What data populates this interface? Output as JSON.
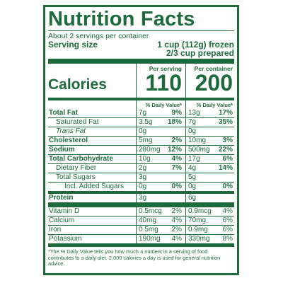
{
  "title": "Nutrition Facts",
  "servings_per_container": "About 2 servings per container",
  "serving_size": {
    "label": "Serving size",
    "line1": "1 cup (112g) frozen",
    "line2": "2/3 cup prepared"
  },
  "calories": {
    "label": "Calories",
    "per_serving_header": "Per serving",
    "per_container_header": "Per container",
    "per_serving": "110",
    "per_container": "200"
  },
  "dv_header": "% Daily Value*",
  "nutrients": [
    {
      "name": "Total Fat",
      "a": "7g",
      "a_pct": "9%",
      "b": "13g",
      "b_pct": "17%"
    },
    {
      "name": "Saturated Fat",
      "a": "3.5g",
      "a_pct": "18%",
      "b": "7g",
      "b_pct": "35%"
    },
    {
      "name": "Trans Fat",
      "a": "0g",
      "a_pct": "",
      "b": "0g",
      "b_pct": ""
    },
    {
      "name": "Cholesterol",
      "a": "5mg",
      "a_pct": "2%",
      "b": "10mg",
      "b_pct": "3%"
    },
    {
      "name": "Sodium",
      "a": "280mg",
      "a_pct": "12%",
      "b": "500mg",
      "b_pct": "22%"
    },
    {
      "name": "Total Carbohydrate",
      "a": "10g",
      "a_pct": "4%",
      "b": "17g",
      "b_pct": "6%"
    },
    {
      "name": "Dietary Fiber",
      "a": "2g",
      "a_pct": "7%",
      "b": "4g",
      "b_pct": "14%"
    },
    {
      "name": "Total Sugars",
      "a": "3g",
      "a_pct": "",
      "b": "5g",
      "b_pct": ""
    },
    {
      "name": "Incl. Added Sugars",
      "a": "0g",
      "a_pct": "0%",
      "b": "0g",
      "b_pct": "0%"
    },
    {
      "name": "Protein",
      "a": "3g",
      "a_pct": "",
      "b": "6g",
      "b_pct": ""
    }
  ],
  "vitamins": [
    {
      "name": "Vitamin D",
      "a": "0.5mcg",
      "a_pct": "2%",
      "b": "0.9mcg",
      "b_pct": "4%"
    },
    {
      "name": "Calcium",
      "a": "40mg",
      "a_pct": "4%",
      "b": "70mg",
      "b_pct": "6%"
    },
    {
      "name": "Iron",
      "a": "0.5mg",
      "a_pct": "2%",
      "b": "0.9mg",
      "b_pct": "6%"
    },
    {
      "name": "Potassium",
      "a": "190mg",
      "a_pct": "4%",
      "b": "330mg",
      "b_pct": "8%"
    }
  ],
  "footnote": "*The % Daily Value tells you how much a nutrient in a serving of food contributes to a daily diet. 2,000 calories a day is used for general nutrition advice.",
  "colors": {
    "ink": "#1d6b3d",
    "background": "#ffffff"
  }
}
